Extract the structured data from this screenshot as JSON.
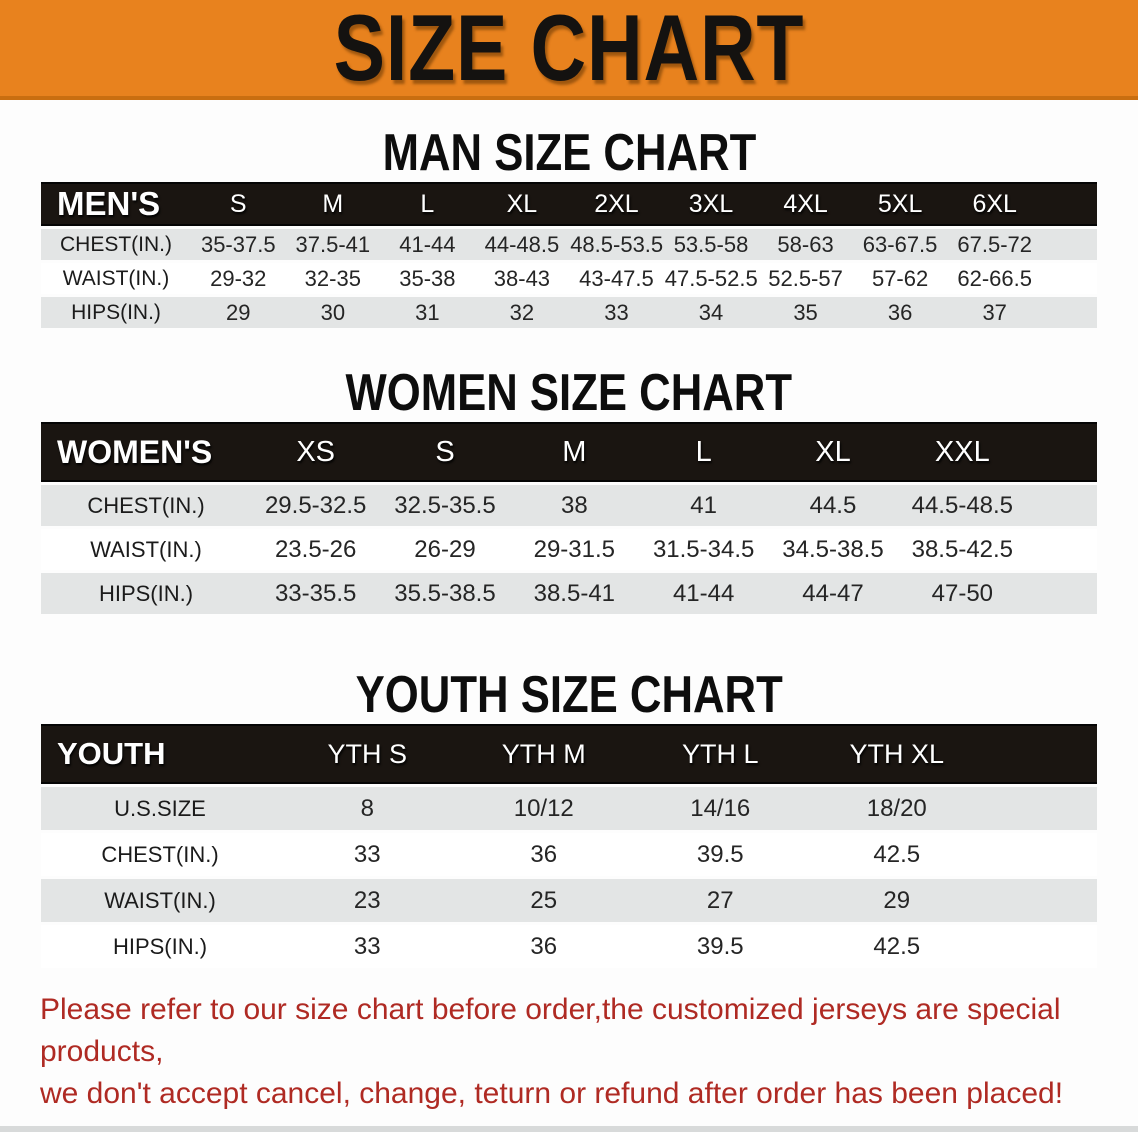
{
  "banner": {
    "title": "SIZE CHART"
  },
  "sections": [
    {
      "heading": "MAN SIZE CHART",
      "table": {
        "corner_label": "MEN'S",
        "columns": [
          "S",
          "M",
          "L",
          "XL",
          "2XL",
          "3XL",
          "4XL",
          "5XL",
          "6XL"
        ],
        "rows": [
          {
            "label": "CHEST(IN.)",
            "values": [
              "35-37.5",
              "37.5-41",
              "41-44",
              "44-48.5",
              "48.5-53.5",
              "53.5-58",
              "58-63",
              "63-67.5",
              "67.5-72"
            ]
          },
          {
            "label": "WAIST(IN.)",
            "values": [
              "29-32",
              "32-35",
              "35-38",
              "38-43",
              "43-47.5",
              "47.5-52.5",
              "52.5-57",
              "57-62",
              "62-66.5"
            ]
          },
          {
            "label": "HIPS(IN.)",
            "values": [
              "29",
              "30",
              "31",
              "32",
              "33",
              "34",
              "35",
              "36",
              "37"
            ]
          }
        ]
      }
    },
    {
      "heading": "WOMEN SIZE CHART",
      "table": {
        "corner_label": "WOMEN'S",
        "columns": [
          "XS",
          "S",
          "M",
          "L",
          "XL",
          "XXL"
        ],
        "rows": [
          {
            "label": "CHEST(IN.)",
            "values": [
              "29.5-32.5",
              "32.5-35.5",
              "38",
              "41",
              "44.5",
              "44.5-48.5"
            ]
          },
          {
            "label": "WAIST(IN.)",
            "values": [
              "23.5-26",
              "26-29",
              "29-31.5",
              "31.5-34.5",
              "34.5-38.5",
              "38.5-42.5"
            ]
          },
          {
            "label": "HIPS(IN.)",
            "values": [
              "33-35.5",
              "35.5-38.5",
              "38.5-41",
              "41-44",
              "44-47",
              "47-50"
            ]
          }
        ]
      }
    },
    {
      "heading": "YOUTH SIZE CHART",
      "table": {
        "corner_label": "YOUTH",
        "columns": [
          "YTH S",
          "YTH M",
          "YTH L",
          "YTH XL"
        ],
        "rows": [
          {
            "label": "U.S.SIZE",
            "values": [
              "8",
              "10/12",
              "14/16",
              "18/20"
            ]
          },
          {
            "label": "CHEST(IN.)",
            "values": [
              "33",
              "36",
              "39.5",
              "42.5"
            ]
          },
          {
            "label": "WAIST(IN.)",
            "values": [
              "23",
              "25",
              "27",
              "29"
            ]
          },
          {
            "label": "HIPS(IN.)",
            "values": [
              "33",
              "36",
              "39.5",
              "42.5"
            ]
          }
        ]
      }
    }
  ],
  "footer": {
    "line1": "Please refer to our size chart before order,the customized jerseys are special products,",
    "line2": "we don't accept cancel, change, teturn or refund after order has been placed!"
  },
  "colors": {
    "banner_orange": "#E8821E",
    "table_header_black": "#1A1511",
    "stripe_gray": "#E3E5E5",
    "footer_red": "#AF2A23"
  }
}
